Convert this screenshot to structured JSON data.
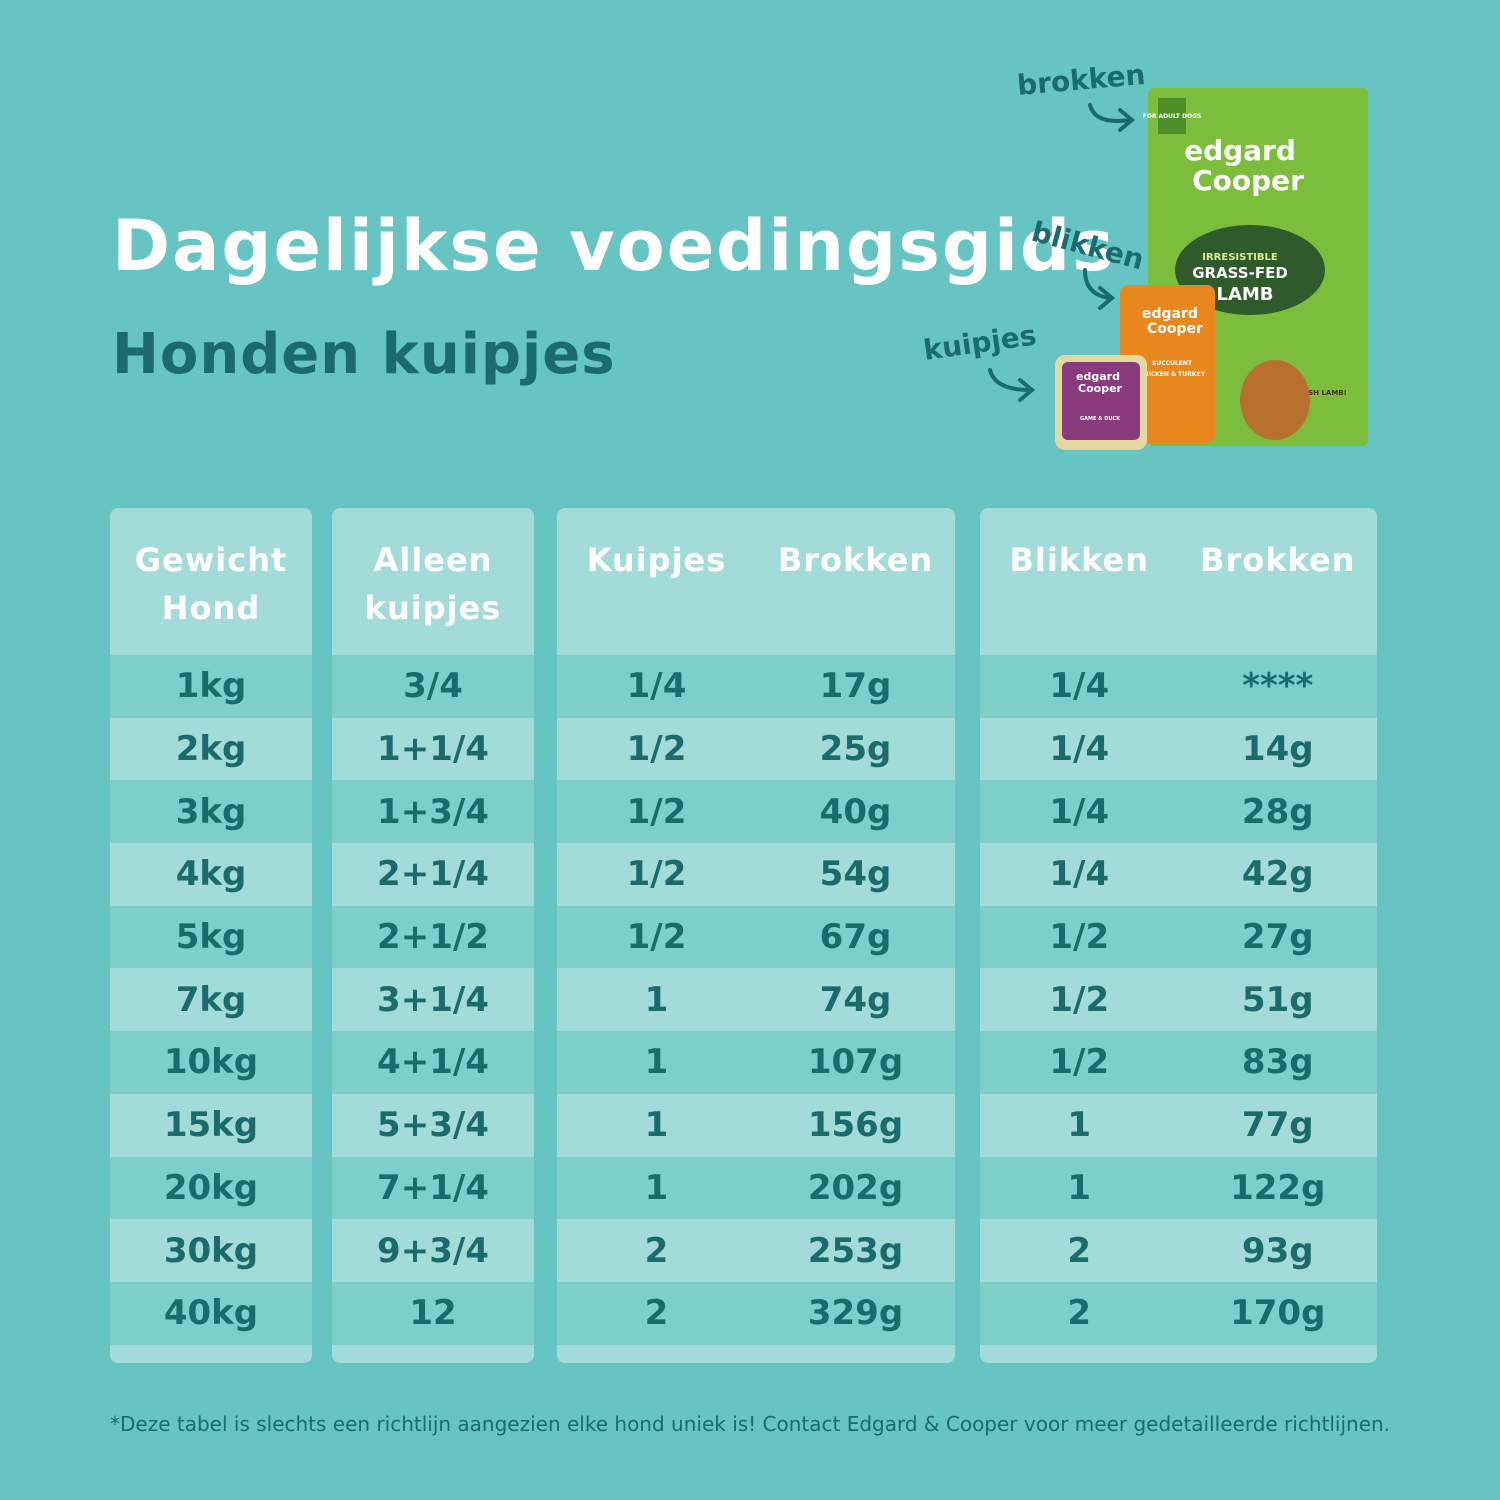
{
  "header": {
    "title": "Dagelijkse voedingsgids",
    "subtitle": "Honden kuipjes"
  },
  "products": {
    "arrow_labels": [
      "brokken",
      "blikken",
      "kuipjes"
    ],
    "bag_texts": [
      "FOR ADULT DOGS",
      "edgard",
      "Cooper",
      "IRRESISTIBLE",
      "GRASS-FED",
      "LAMB",
      "FRESH LAMB!"
    ],
    "can_texts": [
      "edgard",
      "Cooper",
      "SUCCULENT",
      "CHICKEN & TURKEY"
    ],
    "tray_texts": [
      "edgard",
      "Cooper",
      "GAME & DUCK"
    ]
  },
  "table": {
    "panels": [
      {
        "headers": [
          "Gewicht Hond"
        ],
        "rows": [
          [
            "1kg"
          ],
          [
            "2kg"
          ],
          [
            "3kg"
          ],
          [
            "4kg"
          ],
          [
            "5kg"
          ],
          [
            "7kg"
          ],
          [
            "10kg"
          ],
          [
            "15kg"
          ],
          [
            "20kg"
          ],
          [
            "30kg"
          ],
          [
            "40kg"
          ]
        ]
      },
      {
        "headers": [
          "Alleen kuipjes"
        ],
        "rows": [
          [
            "3/4"
          ],
          [
            "1+1/4"
          ],
          [
            "1+3/4"
          ],
          [
            "2+1/4"
          ],
          [
            "2+1/2"
          ],
          [
            "3+1/4"
          ],
          [
            "4+1/4"
          ],
          [
            "5+3/4"
          ],
          [
            "7+1/4"
          ],
          [
            "9+3/4"
          ],
          [
            "12"
          ]
        ]
      },
      {
        "headers": [
          "Kuipjes",
          "Brokken"
        ],
        "rows": [
          [
            "1/4",
            "17g"
          ],
          [
            "1/2",
            "25g"
          ],
          [
            "1/2",
            "40g"
          ],
          [
            "1/2",
            "54g"
          ],
          [
            "1/2",
            "67g"
          ],
          [
            "1",
            "74g"
          ],
          [
            "1",
            "107g"
          ],
          [
            "1",
            "156g"
          ],
          [
            "1",
            "202g"
          ],
          [
            "2",
            "253g"
          ],
          [
            "2",
            "329g"
          ]
        ]
      },
      {
        "headers": [
          "Blikken",
          "Brokken"
        ],
        "rows": [
          [
            "1/4",
            "****"
          ],
          [
            "1/4",
            "14g"
          ],
          [
            "1/4",
            "28g"
          ],
          [
            "1/4",
            "42g"
          ],
          [
            "1/2",
            "27g"
          ],
          [
            "1/2",
            "51g"
          ],
          [
            "1/2",
            "83g"
          ],
          [
            "1",
            "77g"
          ],
          [
            "1",
            "122g"
          ],
          [
            "2",
            "93g"
          ],
          [
            "2",
            "170g"
          ]
        ]
      }
    ]
  },
  "footnote": "*Deze tabel is slechts een richtlijn aangezien elke hond uniek is! Contact Edgard & Cooper voor meer gedetailleerde richtlijnen."
}
